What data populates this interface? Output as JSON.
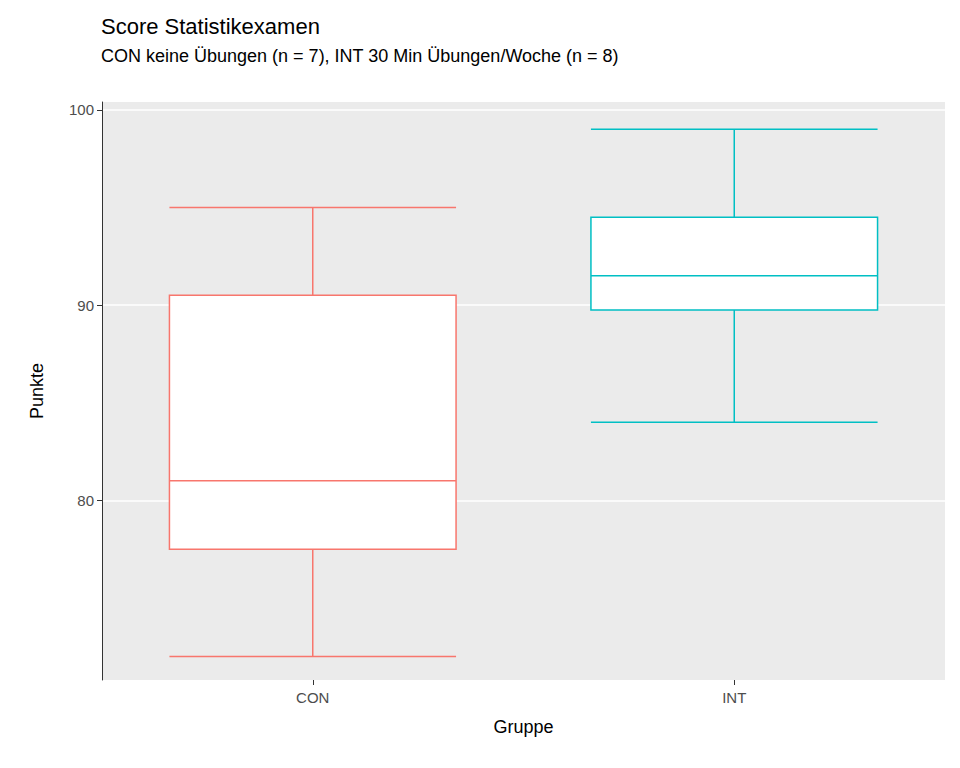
{
  "chart_data": {
    "type": "boxplot",
    "title": "Score Statistikexamen",
    "subtitle": "CON keine Übungen (n = 7), INT 30 Min Übungen/Woche (n = 8)",
    "x_label": "Gruppe",
    "y_label": "Punkte",
    "categories": [
      "CON",
      "INT"
    ],
    "values": [
      [
        72,
        77.5,
        81,
        90.5,
        95
      ],
      [
        84,
        89.75,
        91.5,
        94.5,
        99
      ]
    ],
    "colors": [
      "#f8766d",
      "#00bfc4"
    ],
    "ylim": [
      70.8,
      100.4
    ],
    "yticks": [
      80,
      90,
      100
    ],
    "grid": true
  }
}
